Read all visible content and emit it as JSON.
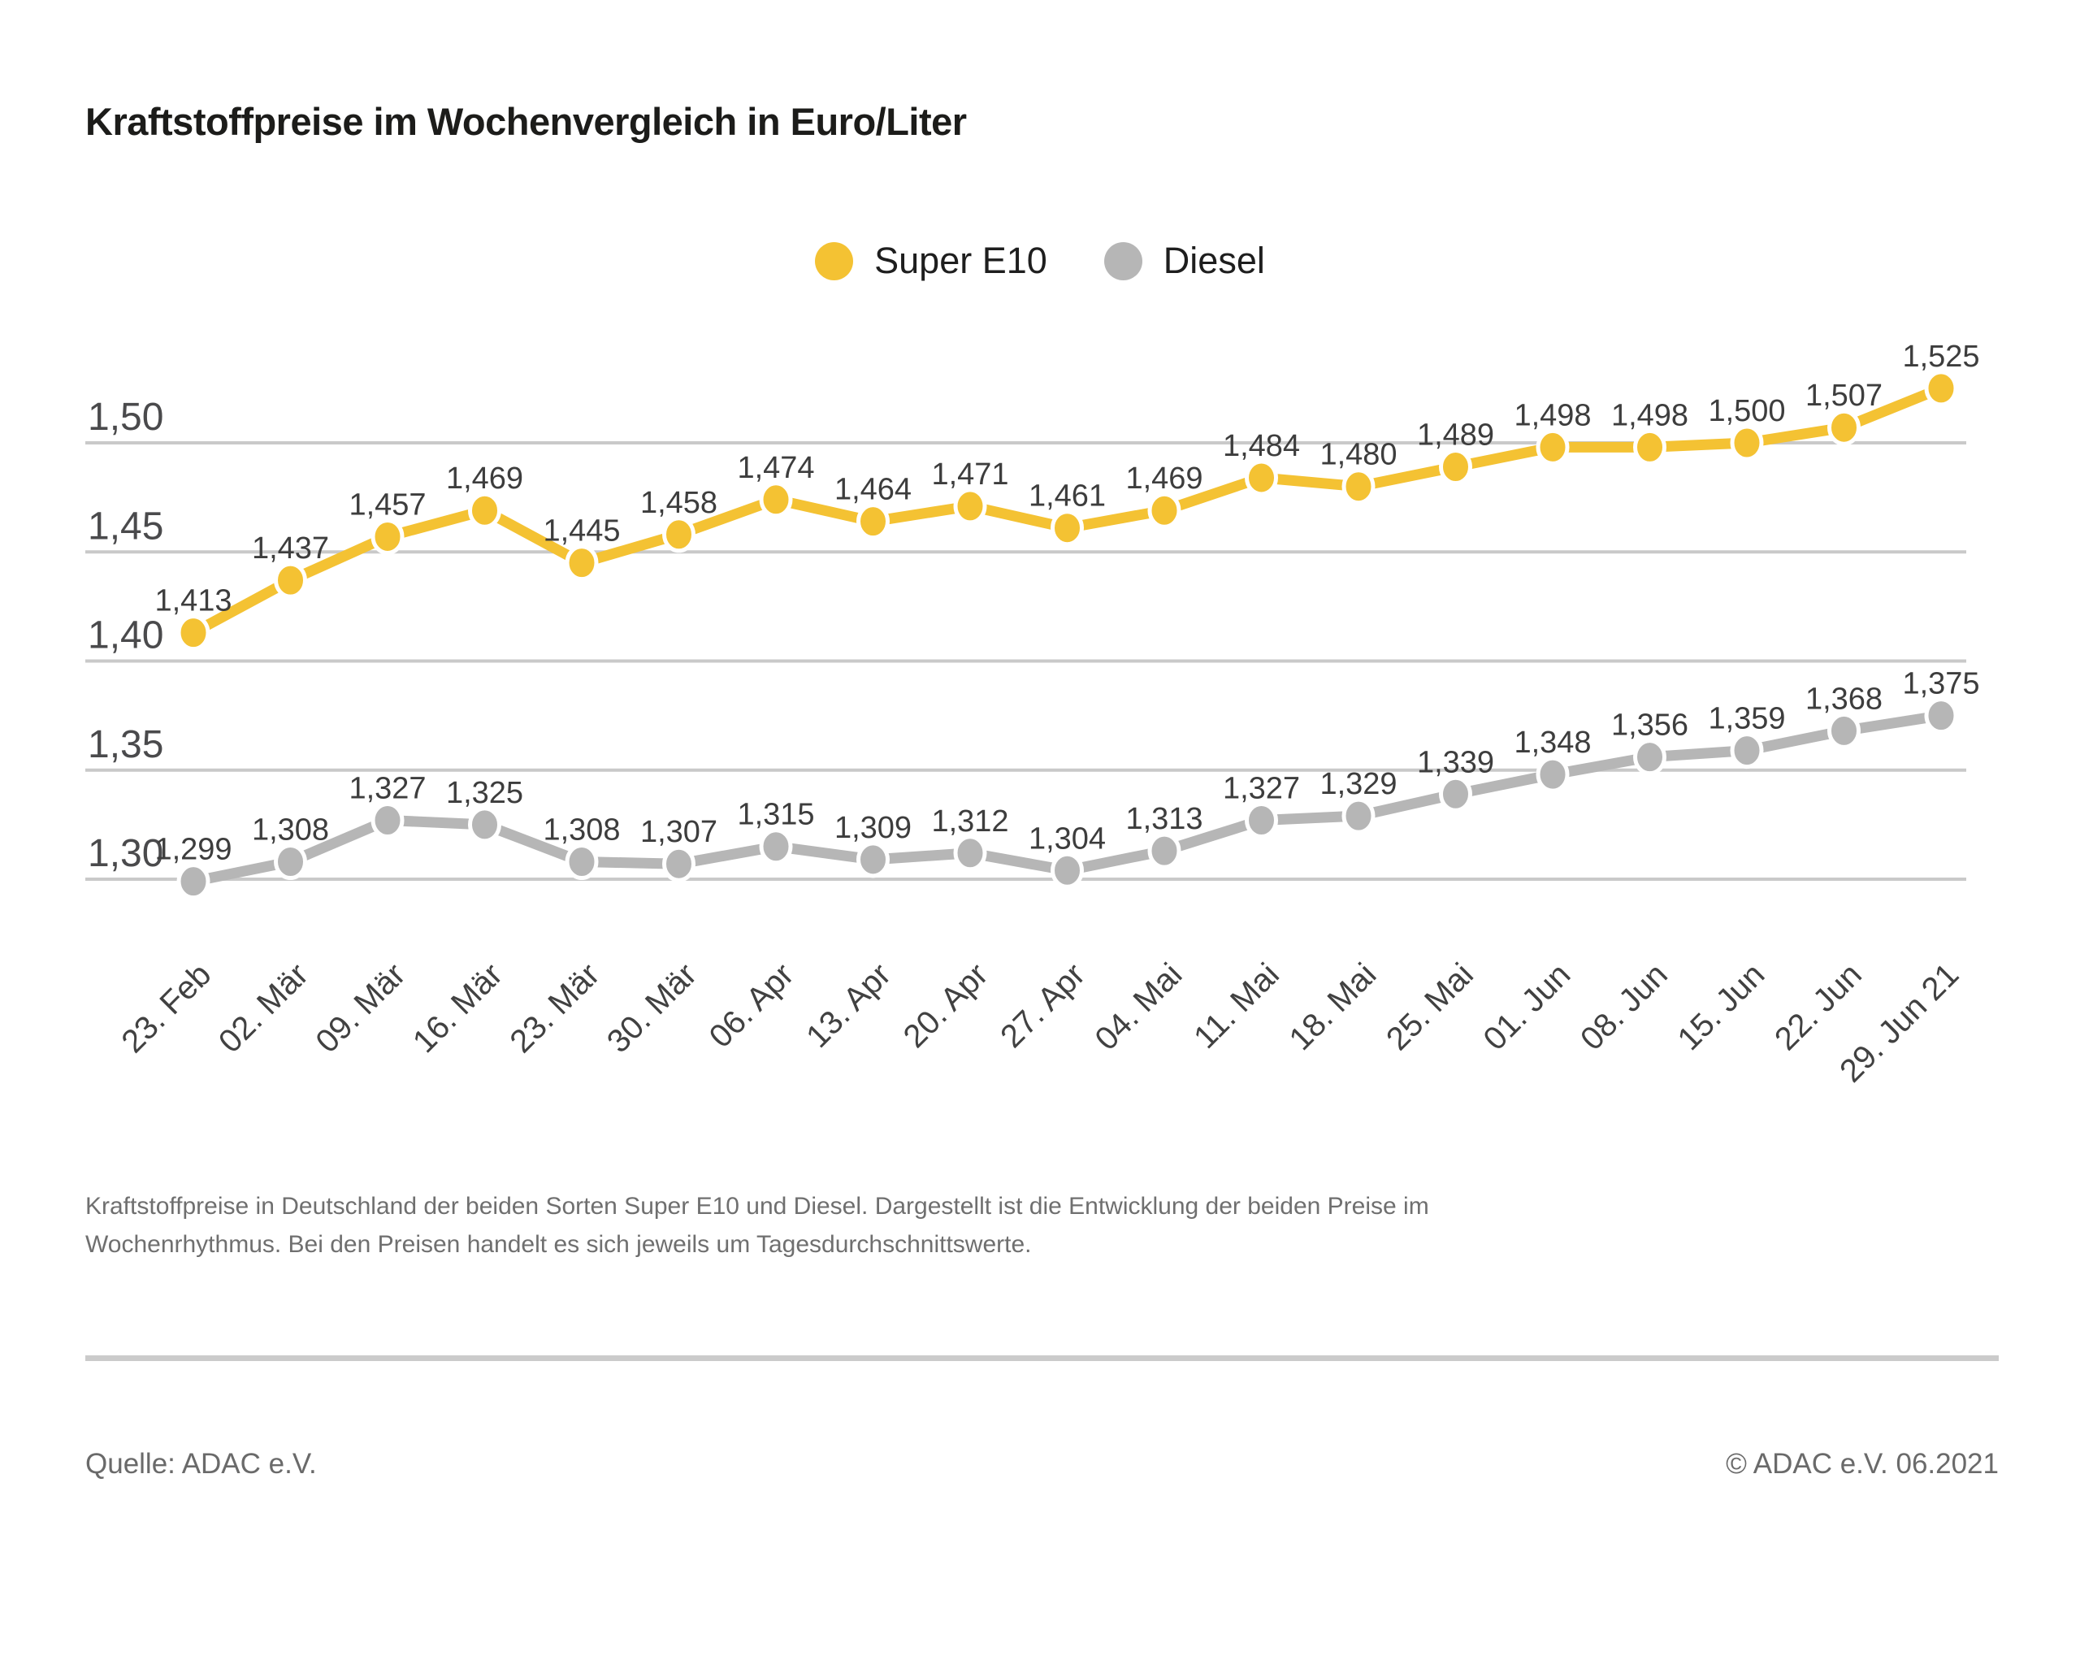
{
  "chart_data": {
    "type": "line",
    "title": "Kraftstoffpreise im Wochenvergleich in Euro/Liter",
    "x": [
      "23. Feb",
      "02. Mär",
      "09. Mär",
      "16. Mär",
      "23. Mär",
      "30. Mär",
      "06. Apr",
      "13. Apr",
      "20. Apr",
      "27. Apr",
      "04. Mai",
      "11. Mai",
      "18. Mai",
      "25. Mai",
      "01. Jun",
      "08. Jun",
      "15. Jun",
      "22. Jun",
      "29. Jun 21"
    ],
    "series": [
      {
        "id": "super-e10",
        "name": "Super E10",
        "color": "#F4C233",
        "values": [
          1.413,
          1.437,
          1.457,
          1.469,
          1.445,
          1.458,
          1.474,
          1.464,
          1.471,
          1.461,
          1.469,
          1.484,
          1.48,
          1.489,
          1.498,
          1.498,
          1.5,
          1.507,
          1.525
        ]
      },
      {
        "id": "diesel",
        "name": "Diesel",
        "color": "#B6B6B6",
        "values": [
          1.299,
          1.308,
          1.327,
          1.325,
          1.308,
          1.307,
          1.315,
          1.309,
          1.312,
          1.304,
          1.313,
          1.327,
          1.329,
          1.339,
          1.348,
          1.356,
          1.359,
          1.368,
          1.375
        ]
      }
    ],
    "yticks": [
      {
        "value": 1.5,
        "label": "1,50"
      },
      {
        "value": 1.45,
        "label": "1,45"
      },
      {
        "value": 1.4,
        "label": "1,40"
      },
      {
        "value": 1.35,
        "label": "1,35"
      },
      {
        "value": 1.3,
        "label": "1,30"
      }
    ],
    "ylim": [
      1.275,
      1.535
    ],
    "xlabel": "",
    "ylabel": "",
    "grid": true,
    "value_labels": true,
    "x_tick_rotation": -45,
    "legend_position": "top-center",
    "gridline_color": "#C9C9C9",
    "marker_halo_color": "#FFFFFF"
  },
  "description": "Kraftstoffpreise in Deutschland der beiden Sorten Super E10 und Diesel. Dargestellt ist die Entwicklung der beiden Preise im Wochenrhythmus. Bei den Preisen handelt es sich jeweils um Tagesdurchschnittswerte.",
  "footer": {
    "source": "Quelle: ADAC e.V.",
    "copyright": "© ADAC e.V. 06.2021"
  }
}
